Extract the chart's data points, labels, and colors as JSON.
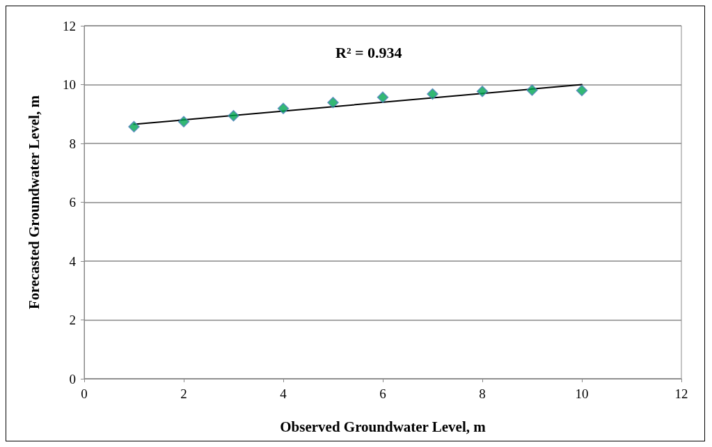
{
  "chart_data": {
    "type": "scatter",
    "xlabel": "Observed Groundwater Level, m",
    "ylabel": "Forecasted Groundwater Level, m",
    "annotations": [
      "R² = 0.934"
    ],
    "x": [
      1,
      2,
      3,
      4,
      5,
      6,
      7,
      8,
      9,
      10
    ],
    "series": [
      {
        "color": "#00a651",
        "values": [
          8.57,
          8.74,
          8.94,
          9.19,
          9.39,
          9.57,
          9.68,
          9.77,
          9.81,
          9.8
        ],
        "marker": "diamond"
      },
      {
        "type": "line",
        "color": "#000000",
        "x": [
          1,
          10
        ],
        "values": [
          8.65,
          10.0
        ],
        "marker": "none",
        "line_style": "solid"
      }
    ],
    "xlim": [
      0,
      12
    ],
    "xticks": [
      0,
      2,
      4,
      6,
      8,
      10,
      12
    ],
    "ylim": [
      0,
      12
    ],
    "yticks": [
      0,
      2,
      4,
      6,
      8,
      10,
      12
    ],
    "grid": "y"
  }
}
